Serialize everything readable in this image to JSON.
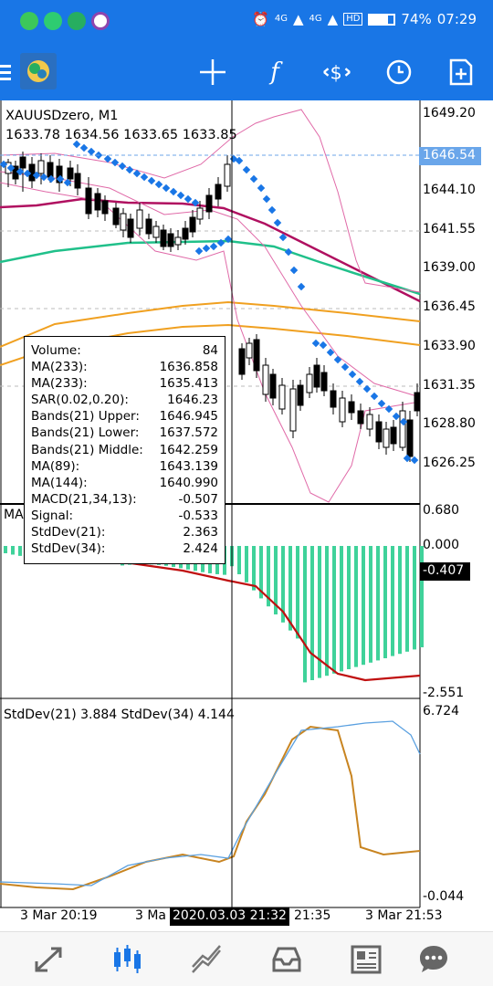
{
  "status_bar": {
    "battery": "74%",
    "time": "07:29",
    "network1": "4G",
    "network2": "4G",
    "hd": "HD",
    "icons": [
      "app-green-icon",
      "wechat-icon",
      "wechat-clone-icon",
      "app-purple-icon"
    ]
  },
  "toolbar": {
    "icons": [
      "menu-icon",
      "metatrader-logo-icon",
      "crosshair-icon",
      "indicators-icon",
      "objects-icon",
      "timeframe-icon",
      "new-order-icon"
    ]
  },
  "chart": {
    "symbol": "XAUUSDzero, M1",
    "ohlc": "1633.78 1634.56 1633.65 1633.85",
    "bid_label": "1646.54",
    "price_scale": [
      "1649.20",
      "1644.10",
      "1641.55",
      "1639.00",
      "1636.45",
      "1633.90",
      "1631.35",
      "1628.80",
      "1626.25"
    ],
    "macd_scale": [
      "0.680",
      "0.000",
      "-2.551"
    ],
    "macd_current": "-0.407",
    "macd_label": "MA",
    "stddev_scale": [
      "6.724",
      "-0.044"
    ],
    "stddev_title": "StdDev(21) 3.884 StdDev(34) 4.144",
    "time_labels": [
      "3 Mar 20:19",
      "3 Ma",
      "21:35",
      "3 Mar 21:53"
    ],
    "crosshair_time": "2020.03.03 21:32",
    "colors": {
      "bull_bear": "#000000",
      "sar": "#1976e6",
      "bands": "#e06aa8",
      "ma_red": "#b01060",
      "ma_green": "#20c08a",
      "ma_orange": "#f0a020",
      "macd_hist": "#3fd29a",
      "macd_signal": "#c01010",
      "std21": "#c88420",
      "std34": "#5aa0e0"
    }
  },
  "data_window": {
    "rows": [
      {
        "k": "Volume:",
        "v": "84"
      },
      {
        "k": "MA(233):",
        "v": "1636.858"
      },
      {
        "k": "MA(233):",
        "v": "1635.413"
      },
      {
        "k": "SAR(0.02,0.20):",
        "v": "1646.23"
      },
      {
        "k": "Bands(21) Upper:",
        "v": "1646.945"
      },
      {
        "k": "Bands(21) Lower:",
        "v": "1637.572"
      },
      {
        "k": "Bands(21) Middle:",
        "v": "1642.259"
      },
      {
        "k": "MA(89):",
        "v": "1643.139"
      },
      {
        "k": "MA(144):",
        "v": "1640.990"
      },
      {
        "k": "MACD(21,34,13):",
        "v": "-0.507"
      },
      {
        "k": "Signal:",
        "v": "-0.533"
      },
      {
        "k": "StdDev(21):",
        "v": "2.363"
      },
      {
        "k": "StdDev(34):",
        "v": "2.424"
      }
    ]
  },
  "bottom_nav": [
    "quotes-icon",
    "chart-icon",
    "trade-icon",
    "history-icon",
    "news-icon",
    "chat-icon"
  ]
}
